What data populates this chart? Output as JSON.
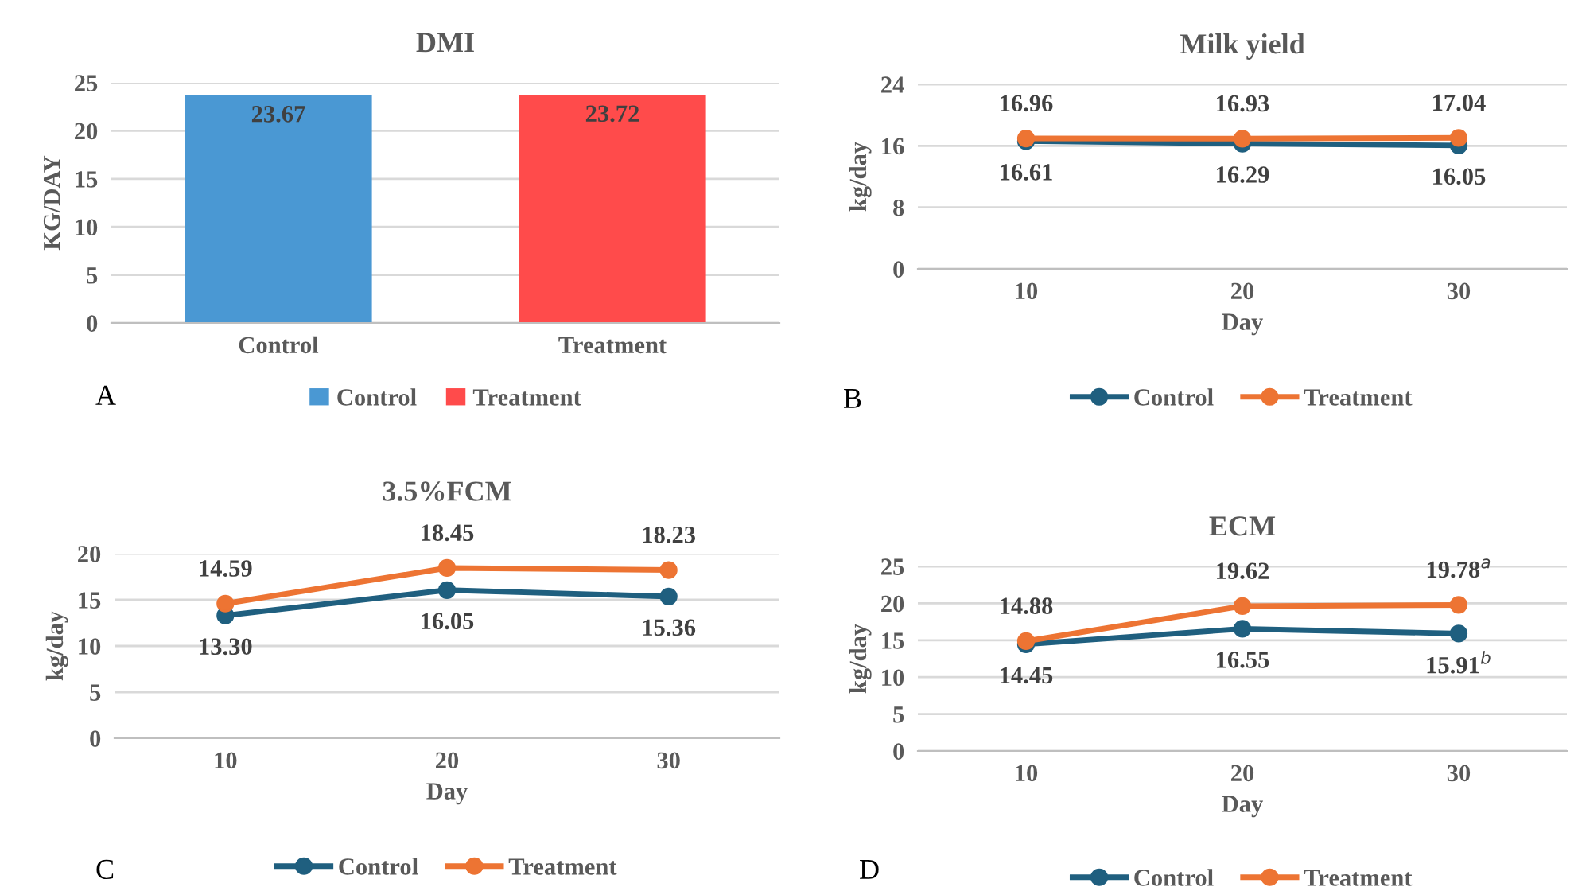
{
  "chart_data": [
    {
      "type": "bar",
      "title": "DMI",
      "ylabel": "KG/DAY",
      "categories": [
        "Control",
        "Treatment"
      ],
      "series": [
        {
          "name": "Control",
          "color": "#4a98d3",
          "values": [
            23.67,
            null
          ],
          "value_labels": [
            "23.67",
            null
          ]
        },
        {
          "name": "Treatment",
          "color": "#ff4b4b",
          "values": [
            null,
            23.72
          ],
          "value_labels": [
            null,
            "23.72"
          ]
        }
      ],
      "ylim": [
        0,
        25
      ],
      "yticks": [
        0,
        5,
        10,
        15,
        20,
        25
      ],
      "grid": "y",
      "legend": "bottom",
      "annotations": [
        "A"
      ]
    },
    {
      "type": "line",
      "title": "Milk yield",
      "xlabel": "Day",
      "ylabel": "kg/day",
      "categories": [
        "10",
        "20",
        "30"
      ],
      "series": [
        {
          "name": "Control",
          "color": "#1f5f7f",
          "values": [
            16.61,
            16.29,
            16.05
          ],
          "value_labels": [
            "16.61",
            "16.29",
            "16.05"
          ]
        },
        {
          "name": "Treatment",
          "color": "#ed7433",
          "values": [
            16.96,
            16.93,
            17.04
          ],
          "value_labels": [
            "16.96",
            "16.93",
            "17.04"
          ]
        }
      ],
      "ylim": [
        0,
        24
      ],
      "yticks": [
        0,
        8,
        16,
        24
      ],
      "grid": "y",
      "legend": "bottom",
      "marker": "circle",
      "line_style": "solid",
      "annotations": [
        "B"
      ]
    },
    {
      "type": "line",
      "title": "3.5%FCM",
      "xlabel": "Day",
      "ylabel": "kg/day",
      "categories": [
        "10",
        "20",
        "30"
      ],
      "series": [
        {
          "name": "Control",
          "color": "#1f5f7f",
          "values": [
            13.3,
            16.05,
            15.36
          ],
          "value_labels": [
            "13.30",
            "16.05",
            "15.36"
          ]
        },
        {
          "name": "Treatment",
          "color": "#ed7433",
          "values": [
            14.59,
            18.45,
            18.23
          ],
          "value_labels": [
            "14.59",
            "18.45",
            "18.23"
          ]
        }
      ],
      "ylim": [
        0,
        20
      ],
      "yticks": [
        0,
        5,
        10,
        15,
        20
      ],
      "grid": "y",
      "legend": "bottom",
      "marker": "circle",
      "line_style": "solid",
      "annotations": [
        "C"
      ]
    },
    {
      "type": "line",
      "title": "ECM",
      "xlabel": "Day",
      "ylabel": "kg/day",
      "categories": [
        "10",
        "20",
        "30"
      ],
      "series": [
        {
          "name": "Control",
          "color": "#1f5f7f",
          "values": [
            14.45,
            16.55,
            15.91
          ],
          "value_labels": [
            "14.45",
            "16.55",
            "15.91$^{b}$"
          ]
        },
        {
          "name": "Treatment",
          "color": "#ed7433",
          "values": [
            14.88,
            19.62,
            19.78
          ],
          "value_labels": [
            "14.88",
            "19.62",
            "19.78$^{a}$"
          ]
        }
      ],
      "ylim": [
        0,
        25
      ],
      "yticks": [
        0,
        5,
        10,
        15,
        20,
        25
      ],
      "grid": "y",
      "legend": "bottom",
      "marker": "circle",
      "line_style": "solid",
      "annotations": [
        "D"
      ]
    }
  ]
}
